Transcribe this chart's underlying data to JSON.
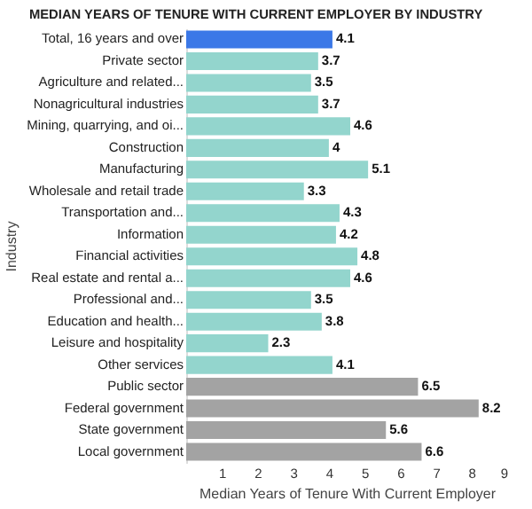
{
  "chart_data": {
    "type": "bar",
    "orientation": "horizontal",
    "title": "MEDIAN YEARS OF TENURE WITH CURRENT EMPLOYER BY INDUSTRY",
    "xlabel": "Median Years of Tenure With Current Employer",
    "ylabel": "Industry",
    "categories": [
      "Total, 16 years and over",
      "Private sector",
      "Agriculture and related...",
      "Nonagricultural industries",
      "Mining, quarrying, and oi...",
      "Construction",
      "Manufacturing",
      "Wholesale and retail trade",
      "Transportation and...",
      "Information",
      "Financial activities",
      "Real estate and rental a...",
      "Professional and...",
      "Education and health...",
      "Leisure and hospitality",
      "Other services",
      "Public sector",
      "Federal government",
      "State government",
      "Local government"
    ],
    "values": [
      4.1,
      3.7,
      3.5,
      3.7,
      4.6,
      4,
      5.1,
      3.3,
      4.3,
      4.2,
      4.8,
      4.6,
      3.5,
      3.8,
      2.3,
      4.1,
      6.5,
      8.2,
      5.6,
      6.6
    ],
    "colors": [
      "#3b78e7",
      "#93d5cd",
      "#93d5cd",
      "#93d5cd",
      "#93d5cd",
      "#93d5cd",
      "#93d5cd",
      "#93d5cd",
      "#93d5cd",
      "#93d5cd",
      "#93d5cd",
      "#93d5cd",
      "#93d5cd",
      "#93d5cd",
      "#93d5cd",
      "#93d5cd",
      "#a3a3a3",
      "#a3a3a3",
      "#a3a3a3",
      "#a3a3a3"
    ],
    "xlim": [
      0,
      9
    ],
    "xticks": [
      1,
      2,
      3,
      4,
      5,
      6,
      7,
      8,
      9
    ],
    "data_labels": true,
    "grid": false
  }
}
